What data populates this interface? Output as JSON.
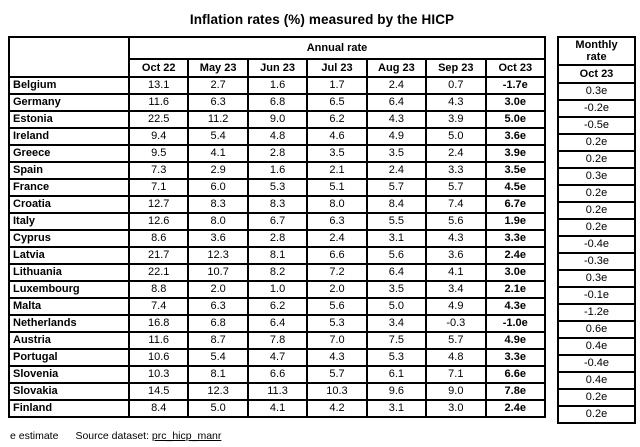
{
  "chart_data": {
    "type": "table",
    "title": "Inflation rates (%) measured by the HICP",
    "annual_group_header": "Annual rate",
    "monthly_group_header": "Monthly rate",
    "annual_columns": [
      "Oct 22",
      "May 23",
      "Jun 23",
      "Jul 23",
      "Aug 23",
      "Sep 23",
      "Oct 23"
    ],
    "monthly_column": "Oct 23",
    "rows": [
      {
        "country": "Belgium",
        "annual": [
          "13.1",
          "2.7",
          "1.6",
          "1.7",
          "2.4",
          "0.7",
          "-1.7e"
        ],
        "monthly": "0.3e"
      },
      {
        "country": "Germany",
        "annual": [
          "11.6",
          "6.3",
          "6.8",
          "6.5",
          "6.4",
          "4.3",
          "3.0e"
        ],
        "monthly": "-0.2e"
      },
      {
        "country": "Estonia",
        "annual": [
          "22.5",
          "11.2",
          "9.0",
          "6.2",
          "4.3",
          "3.9",
          "5.0e"
        ],
        "monthly": "-0.5e"
      },
      {
        "country": "Ireland",
        "annual": [
          "9.4",
          "5.4",
          "4.8",
          "4.6",
          "4.9",
          "5.0",
          "3.6e"
        ],
        "monthly": "0.2e"
      },
      {
        "country": "Greece",
        "annual": [
          "9.5",
          "4.1",
          "2.8",
          "3.5",
          "3.5",
          "2.4",
          "3.9e"
        ],
        "monthly": "0.2e"
      },
      {
        "country": "Spain",
        "annual": [
          "7.3",
          "2.9",
          "1.6",
          "2.1",
          "2.4",
          "3.3",
          "3.5e"
        ],
        "monthly": "0.3e"
      },
      {
        "country": "France",
        "annual": [
          "7.1",
          "6.0",
          "5.3",
          "5.1",
          "5.7",
          "5.7",
          "4.5e"
        ],
        "monthly": "0.2e"
      },
      {
        "country": "Croatia",
        "annual": [
          "12.7",
          "8.3",
          "8.3",
          "8.0",
          "8.4",
          "7.4",
          "6.7e"
        ],
        "monthly": "0.2e"
      },
      {
        "country": "Italy",
        "annual": [
          "12.6",
          "8.0",
          "6.7",
          "6.3",
          "5.5",
          "5.6",
          "1.9e"
        ],
        "monthly": "0.2e"
      },
      {
        "country": "Cyprus",
        "annual": [
          "8.6",
          "3.6",
          "2.8",
          "2.4",
          "3.1",
          "4.3",
          "3.3e"
        ],
        "monthly": "-0.4e"
      },
      {
        "country": "Latvia",
        "annual": [
          "21.7",
          "12.3",
          "8.1",
          "6.6",
          "5.6",
          "3.6",
          "2.4e"
        ],
        "monthly": "-0.3e"
      },
      {
        "country": "Lithuania",
        "annual": [
          "22.1",
          "10.7",
          "8.2",
          "7.2",
          "6.4",
          "4.1",
          "3.0e"
        ],
        "monthly": "0.3e"
      },
      {
        "country": "Luxembourg",
        "annual": [
          "8.8",
          "2.0",
          "1.0",
          "2.0",
          "3.5",
          "3.4",
          "2.1e"
        ],
        "monthly": "-0.1e"
      },
      {
        "country": "Malta",
        "annual": [
          "7.4",
          "6.3",
          "6.2",
          "5.6",
          "5.0",
          "4.9",
          "4.3e"
        ],
        "monthly": "-1.2e"
      },
      {
        "country": "Netherlands",
        "annual": [
          "16.8",
          "6.8",
          "6.4",
          "5.3",
          "3.4",
          "-0.3",
          "-1.0e"
        ],
        "monthly": "0.6e"
      },
      {
        "country": "Austria",
        "annual": [
          "11.6",
          "8.7",
          "7.8",
          "7.0",
          "7.5",
          "5.7",
          "4.9e"
        ],
        "monthly": "0.4e"
      },
      {
        "country": "Portugal",
        "annual": [
          "10.6",
          "5.4",
          "4.7",
          "4.3",
          "5.3",
          "4.8",
          "3.3e"
        ],
        "monthly": "-0.4e"
      },
      {
        "country": "Slovenia",
        "annual": [
          "10.3",
          "8.1",
          "6.6",
          "5.7",
          "6.1",
          "7.1",
          "6.6e"
        ],
        "monthly": "0.4e"
      },
      {
        "country": "Slovakia",
        "annual": [
          "14.5",
          "12.3",
          "11.3",
          "10.3",
          "9.6",
          "9.0",
          "7.8e"
        ],
        "monthly": "0.2e"
      },
      {
        "country": "Finland",
        "annual": [
          "8.4",
          "5.0",
          "4.1",
          "4.2",
          "3.1",
          "3.0",
          "2.4e"
        ],
        "monthly": "0.2e"
      }
    ]
  },
  "footer": {
    "estimate_note": "e estimate",
    "source_label": "Source dataset:",
    "source_link": "prc_hicp_manr"
  }
}
